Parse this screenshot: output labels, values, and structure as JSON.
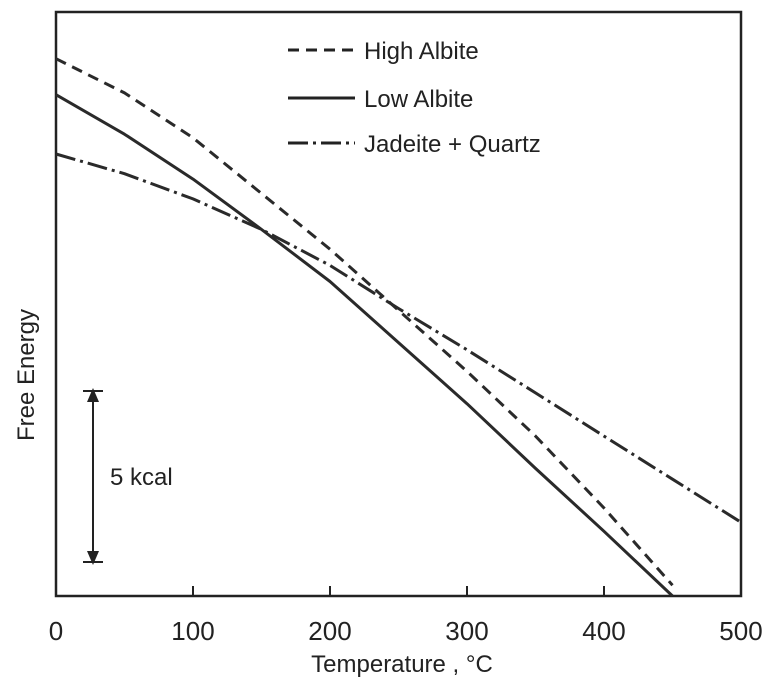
{
  "chart_data": {
    "type": "line",
    "title": "",
    "xlabel": "Temperature , °C",
    "ylabel": "Free Energy",
    "xlim": [
      0,
      500
    ],
    "ylim": [
      -21.9,
      10.6
    ],
    "x_ticks": [
      "0",
      "100",
      "200",
      "300",
      "400",
      "500"
    ],
    "grid": false,
    "legend_position": "top-center",
    "scale_bar": {
      "label": "5 kcal",
      "value_kcal": 5
    },
    "series": [
      {
        "name": "High Albite",
        "style": "dashed",
        "color": "#2a2a2a",
        "x": [
          0,
          50,
          100,
          150,
          200,
          250,
          300,
          350,
          400,
          450
        ],
        "y": [
          8.0,
          6.1,
          3.6,
          0.5,
          -2.6,
          -6.0,
          -9.4,
          -13.0,
          -17.0,
          -21.3
        ]
      },
      {
        "name": "Low Albite",
        "style": "solid",
        "color": "#2a2a2a",
        "x": [
          0,
          50,
          100,
          150,
          200,
          250,
          300,
          350,
          400,
          450
        ],
        "y": [
          6.0,
          3.8,
          1.3,
          -1.5,
          -4.4,
          -7.8,
          -11.2,
          -14.8,
          -18.3,
          -21.9
        ]
      },
      {
        "name": "Jadeite + Quartz",
        "style": "dashdot",
        "color": "#2a2a2a",
        "x": [
          0,
          50,
          100,
          150,
          200,
          250,
          300,
          350,
          400,
          450,
          500
        ],
        "y": [
          2.7,
          1.6,
          0.2,
          -1.5,
          -3.5,
          -5.9,
          -8.2,
          -10.6,
          -13.0,
          -15.4,
          -17.8
        ]
      }
    ]
  }
}
